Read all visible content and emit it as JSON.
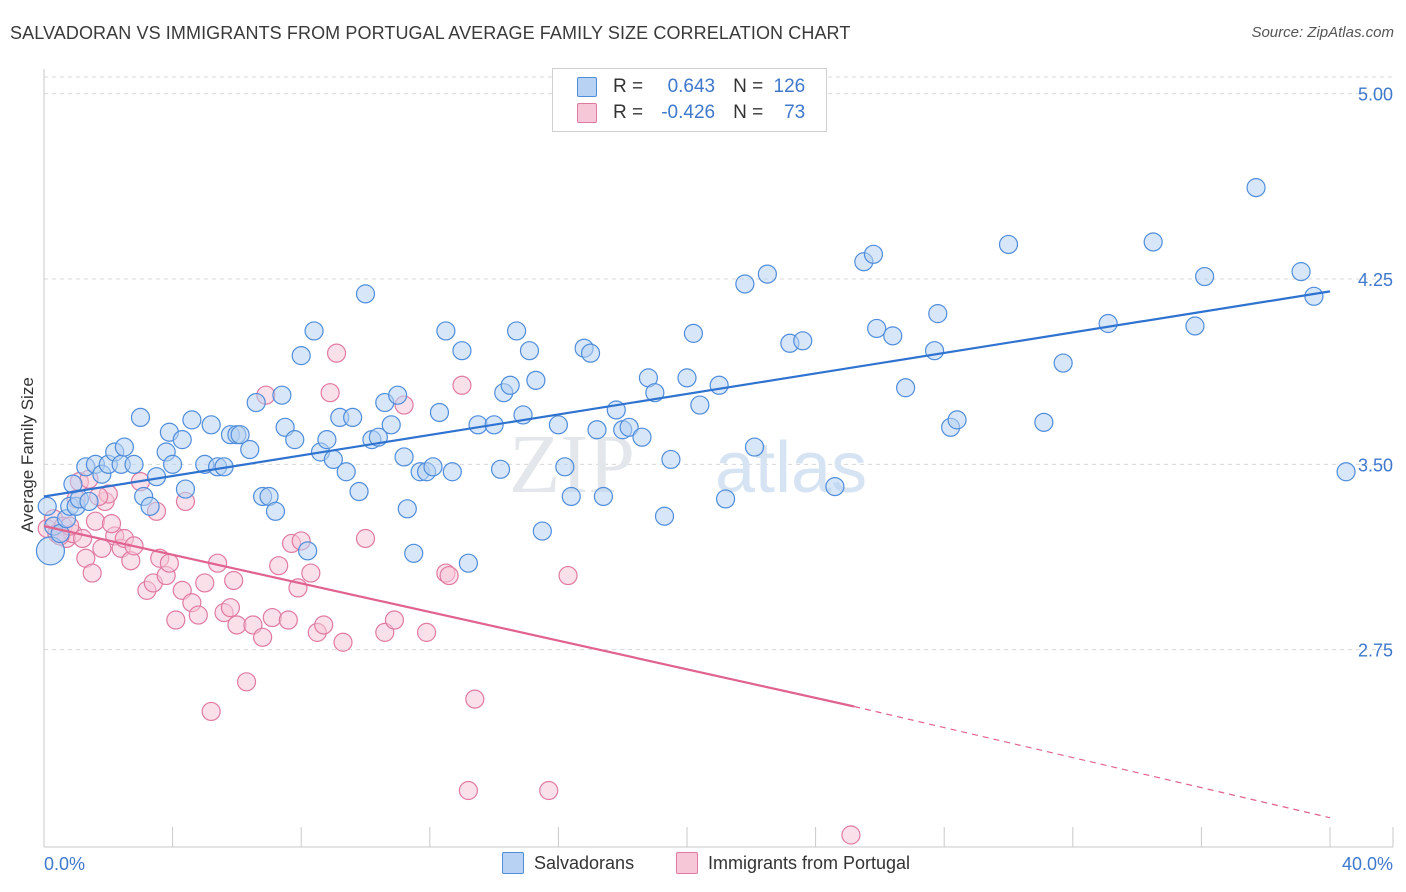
{
  "header": {
    "title": "SALVADORAN VS IMMIGRANTS FROM PORTUGAL AVERAGE FAMILY SIZE CORRELATION CHART",
    "source": "Source: ZipAtlas.com"
  },
  "watermark": {
    "zip": "ZIP",
    "atlas": "atlas"
  },
  "colors": {
    "blue": "#4f8ddb",
    "blue_fill": "#b7d2f3",
    "blue_line": "#2f73d0",
    "pink": "#e07aa0",
    "pink_fill": "#f6c7d7",
    "pink_line": "#e0628f",
    "grid": "#d8d8d8",
    "tick_label": "#3f78cc"
  },
  "legend": {
    "rows": [
      {
        "r_label": "R =",
        "r_value": "0.643",
        "n_label": "N =",
        "n_value": "126",
        "color": "blue"
      },
      {
        "r_label": "R =",
        "r_value": "-0.426",
        "n_label": "N =",
        "n_value": "73",
        "color": "pink"
      }
    ]
  },
  "bottom_legend": [
    {
      "label": "Salvadorans",
      "color": "blue"
    },
    {
      "label": "Immigrants from Portugal",
      "color": "pink"
    }
  ],
  "chart_data": {
    "type": "scatter",
    "title": "SALVADORAN VS IMMIGRANTS FROM PORTUGAL AVERAGE FAMILY SIZE CORRELATION CHART",
    "xlabel": "",
    "ylabel": "Average Family Size",
    "xlim": [
      0,
      40
    ],
    "ylim": [
      2.0,
      5.1
    ],
    "x_tick_labels": [
      "0.0%",
      "40.0%"
    ],
    "y_ticks": [
      2.75,
      3.5,
      4.25,
      5.0
    ],
    "y_tick_labels": [
      "2.75",
      "3.50",
      "4.25",
      "5.00"
    ],
    "grid": true,
    "legend_position": "top-center",
    "series": [
      {
        "name": "Salvadorans",
        "color": "blue",
        "regression": {
          "x": [
            0,
            40
          ],
          "y": [
            3.37,
            4.2
          ]
        },
        "points": [
          [
            0.2,
            3.15
          ],
          [
            0.3,
            3.25
          ],
          [
            0.5,
            3.22
          ],
          [
            0.7,
            3.28
          ],
          [
            0.8,
            3.33
          ],
          [
            0.9,
            3.42
          ],
          [
            1.0,
            3.33
          ],
          [
            1.1,
            3.36
          ],
          [
            1.3,
            3.49
          ],
          [
            1.4,
            3.35
          ],
          [
            1.6,
            3.5
          ],
          [
            1.8,
            3.46
          ],
          [
            2.0,
            3.5
          ],
          [
            2.2,
            3.55
          ],
          [
            2.4,
            3.5
          ],
          [
            2.5,
            3.57
          ],
          [
            2.8,
            3.5
          ],
          [
            3.0,
            3.69
          ],
          [
            3.1,
            3.37
          ],
          [
            3.3,
            3.33
          ],
          [
            3.5,
            3.45
          ],
          [
            3.8,
            3.55
          ],
          [
            3.9,
            3.63
          ],
          [
            4.0,
            3.5
          ],
          [
            4.3,
            3.6
          ],
          [
            4.4,
            3.4
          ],
          [
            4.6,
            3.68
          ],
          [
            5.0,
            3.5
          ],
          [
            5.2,
            3.66
          ],
          [
            5.4,
            3.49
          ],
          [
            5.6,
            3.49
          ],
          [
            5.8,
            3.62
          ],
          [
            6.0,
            3.62
          ],
          [
            6.1,
            3.62
          ],
          [
            6.4,
            3.56
          ],
          [
            6.6,
            3.75
          ],
          [
            6.8,
            3.37
          ],
          [
            7.0,
            3.37
          ],
          [
            7.2,
            3.31
          ],
          [
            7.4,
            3.78
          ],
          [
            7.5,
            3.65
          ],
          [
            7.8,
            3.6
          ],
          [
            8.0,
            3.94
          ],
          [
            8.2,
            3.15
          ],
          [
            8.4,
            4.04
          ],
          [
            8.6,
            3.55
          ],
          [
            8.8,
            3.6
          ],
          [
            9.0,
            3.52
          ],
          [
            9.2,
            3.69
          ],
          [
            9.4,
            3.47
          ],
          [
            9.6,
            3.69
          ],
          [
            9.8,
            3.39
          ],
          [
            10.0,
            4.19
          ],
          [
            10.2,
            3.6
          ],
          [
            10.4,
            3.61
          ],
          [
            10.6,
            3.75
          ],
          [
            10.8,
            3.66
          ],
          [
            11.0,
            3.78
          ],
          [
            11.2,
            3.53
          ],
          [
            11.3,
            3.32
          ],
          [
            11.5,
            3.14
          ],
          [
            11.7,
            3.47
          ],
          [
            11.9,
            3.47
          ],
          [
            12.1,
            3.49
          ],
          [
            12.3,
            3.71
          ],
          [
            12.5,
            4.04
          ],
          [
            12.7,
            3.47
          ],
          [
            13.0,
            3.96
          ],
          [
            13.2,
            3.1
          ],
          [
            13.5,
            3.66
          ],
          [
            14.0,
            3.66
          ],
          [
            14.2,
            3.48
          ],
          [
            14.3,
            3.79
          ],
          [
            14.5,
            3.82
          ],
          [
            14.7,
            4.04
          ],
          [
            14.9,
            3.7
          ],
          [
            15.1,
            3.96
          ],
          [
            15.3,
            3.84
          ],
          [
            15.5,
            3.23
          ],
          [
            16.0,
            3.66
          ],
          [
            16.2,
            3.49
          ],
          [
            16.4,
            3.37
          ],
          [
            16.8,
            3.97
          ],
          [
            17.0,
            3.95
          ],
          [
            17.2,
            3.64
          ],
          [
            17.4,
            3.37
          ],
          [
            17.8,
            3.72
          ],
          [
            18.0,
            3.64
          ],
          [
            18.2,
            3.65
          ],
          [
            18.6,
            3.61
          ],
          [
            18.8,
            3.85
          ],
          [
            19.0,
            3.79
          ],
          [
            19.3,
            3.29
          ],
          [
            19.5,
            3.52
          ],
          [
            20.0,
            3.85
          ],
          [
            20.2,
            4.03
          ],
          [
            20.4,
            3.74
          ],
          [
            21.0,
            3.82
          ],
          [
            21.2,
            3.36
          ],
          [
            21.8,
            4.23
          ],
          [
            22.1,
            3.57
          ],
          [
            22.5,
            4.27
          ],
          [
            23.2,
            3.99
          ],
          [
            23.6,
            4.0
          ],
          [
            24.6,
            3.41
          ],
          [
            25.5,
            4.32
          ],
          [
            25.8,
            4.35
          ],
          [
            25.9,
            4.05
          ],
          [
            26.4,
            4.02
          ],
          [
            26.8,
            3.81
          ],
          [
            27.7,
            3.96
          ],
          [
            27.8,
            4.11
          ],
          [
            28.2,
            3.65
          ],
          [
            28.4,
            3.68
          ],
          [
            30.0,
            4.39
          ],
          [
            31.1,
            3.67
          ],
          [
            31.7,
            3.91
          ],
          [
            33.1,
            4.07
          ],
          [
            34.5,
            4.4
          ],
          [
            35.8,
            4.06
          ],
          [
            36.1,
            4.26
          ],
          [
            37.7,
            4.62
          ],
          [
            39.1,
            4.28
          ],
          [
            39.5,
            4.18
          ],
          [
            40.5,
            3.47
          ],
          [
            0.1,
            3.33
          ]
        ]
      },
      {
        "name": "Immigrants from Portugal",
        "color": "pink",
        "regression": {
          "x": [
            0,
            25.2
          ],
          "y": [
            3.25,
            2.52
          ]
        },
        "regression_dashed": {
          "x": [
            25.2,
            40
          ],
          "y": [
            2.52,
            2.07
          ]
        },
        "points": [
          [
            0.1,
            3.24
          ],
          [
            0.3,
            3.28
          ],
          [
            0.4,
            3.22
          ],
          [
            0.6,
            3.25
          ],
          [
            0.7,
            3.2
          ],
          [
            0.9,
            3.22
          ],
          [
            1.0,
            3.36
          ],
          [
            1.1,
            3.43
          ],
          [
            1.3,
            3.12
          ],
          [
            1.4,
            3.44
          ],
          [
            1.5,
            3.06
          ],
          [
            1.6,
            3.27
          ],
          [
            1.8,
            3.16
          ],
          [
            1.9,
            3.35
          ],
          [
            2.0,
            3.38
          ],
          [
            2.2,
            3.21
          ],
          [
            2.4,
            3.16
          ],
          [
            2.5,
            3.2
          ],
          [
            2.7,
            3.11
          ],
          [
            2.8,
            3.17
          ],
          [
            3.0,
            3.43
          ],
          [
            3.2,
            2.99
          ],
          [
            3.4,
            3.02
          ],
          [
            3.5,
            3.31
          ],
          [
            3.6,
            3.12
          ],
          [
            3.8,
            3.05
          ],
          [
            3.9,
            3.1
          ],
          [
            4.1,
            2.87
          ],
          [
            4.3,
            2.99
          ],
          [
            4.4,
            3.35
          ],
          [
            4.6,
            2.94
          ],
          [
            4.8,
            2.89
          ],
          [
            5.0,
            3.02
          ],
          [
            5.2,
            2.5
          ],
          [
            5.4,
            3.1
          ],
          [
            5.6,
            2.9
          ],
          [
            5.8,
            2.92
          ],
          [
            5.9,
            3.03
          ],
          [
            6.0,
            2.85
          ],
          [
            6.3,
            2.62
          ],
          [
            6.5,
            2.85
          ],
          [
            6.8,
            2.8
          ],
          [
            6.9,
            3.78
          ],
          [
            7.1,
            2.88
          ],
          [
            7.3,
            3.09
          ],
          [
            7.6,
            2.87
          ],
          [
            7.7,
            3.18
          ],
          [
            7.9,
            3.0
          ],
          [
            8.0,
            3.19
          ],
          [
            8.3,
            3.06
          ],
          [
            8.5,
            2.82
          ],
          [
            8.7,
            2.85
          ],
          [
            8.9,
            3.79
          ],
          [
            9.1,
            3.95
          ],
          [
            9.3,
            2.78
          ],
          [
            10.0,
            3.2
          ],
          [
            10.6,
            2.82
          ],
          [
            10.9,
            2.87
          ],
          [
            11.2,
            3.74
          ],
          [
            11.9,
            2.82
          ],
          [
            12.5,
            3.06
          ],
          [
            12.6,
            3.05
          ],
          [
            13.0,
            3.82
          ],
          [
            13.2,
            2.18
          ],
          [
            13.4,
            2.55
          ],
          [
            15.7,
            2.18
          ],
          [
            16.3,
            3.05
          ],
          [
            25.1,
            2.0
          ],
          [
            0.5,
            3.21
          ],
          [
            0.8,
            3.25
          ],
          [
            1.2,
            3.2
          ],
          [
            1.7,
            3.37
          ],
          [
            2.1,
            3.26
          ]
        ]
      }
    ]
  }
}
